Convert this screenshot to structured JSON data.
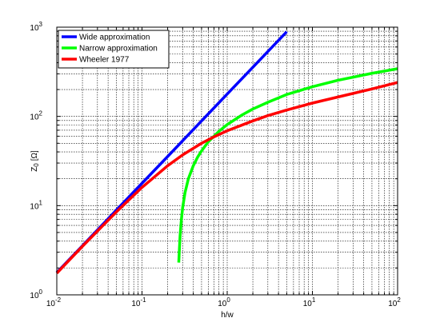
{
  "chart_data": {
    "type": "line",
    "title": "",
    "xlabel": "h/w",
    "ylabel_main": "Z",
    "ylabel_sub": "0",
    "ylabel_unit": "[Ω]",
    "x_scale": "log",
    "y_scale": "log",
    "xlim": [
      0.01,
      100
    ],
    "ylim": [
      1,
      1000
    ],
    "grid": true,
    "legend_position": "top-left",
    "x_ticks": [
      {
        "base": "10",
        "exp": "-2",
        "value": 0.01
      },
      {
        "base": "10",
        "exp": "-1",
        "value": 0.1
      },
      {
        "base": "10",
        "exp": "0",
        "value": 1
      },
      {
        "base": "10",
        "exp": "1",
        "value": 10
      },
      {
        "base": "10",
        "exp": "2",
        "value": 100
      }
    ],
    "y_ticks": [
      {
        "base": "10",
        "exp": "0",
        "value": 1
      },
      {
        "base": "10",
        "exp": "1",
        "value": 10
      },
      {
        "base": "10",
        "exp": "2",
        "value": 100
      },
      {
        "base": "10",
        "exp": "3",
        "value": 1000
      }
    ],
    "series": [
      {
        "name": "Wide approximation",
        "color": "#0000ff",
        "x": [
          0.01,
          0.02,
          0.05,
          0.1,
          0.2,
          0.5,
          1,
          2,
          5
        ],
        "y": [
          1.78,
          3.55,
          8.9,
          17.8,
          35.5,
          89,
          178,
          355,
          890
        ]
      },
      {
        "name": "Narrow approximation",
        "color": "#00ff00",
        "x": [
          0.27,
          0.275,
          0.28,
          0.29,
          0.3,
          0.32,
          0.35,
          0.4,
          0.45,
          0.5,
          0.6,
          0.7,
          0.8,
          1,
          1.5,
          2,
          3,
          5,
          10,
          20,
          50,
          100
        ],
        "y": [
          2.3,
          3.3,
          4.6,
          7,
          9.5,
          14,
          20,
          28,
          35,
          41,
          52,
          60,
          68,
          81,
          104,
          121,
          144,
          176,
          215,
          254,
          304,
          342
        ]
      },
      {
        "name": "Wheeler 1977",
        "color": "#ff0000",
        "x": [
          0.01,
          0.02,
          0.05,
          0.1,
          0.2,
          0.3,
          0.5,
          0.7,
          1,
          2,
          3,
          5,
          10,
          20,
          50,
          100
        ],
        "y": [
          1.75,
          3.5,
          8.5,
          16,
          28,
          37,
          50,
          59,
          69,
          89,
          102,
          118,
          141,
          165,
          203,
          240
        ]
      }
    ]
  }
}
